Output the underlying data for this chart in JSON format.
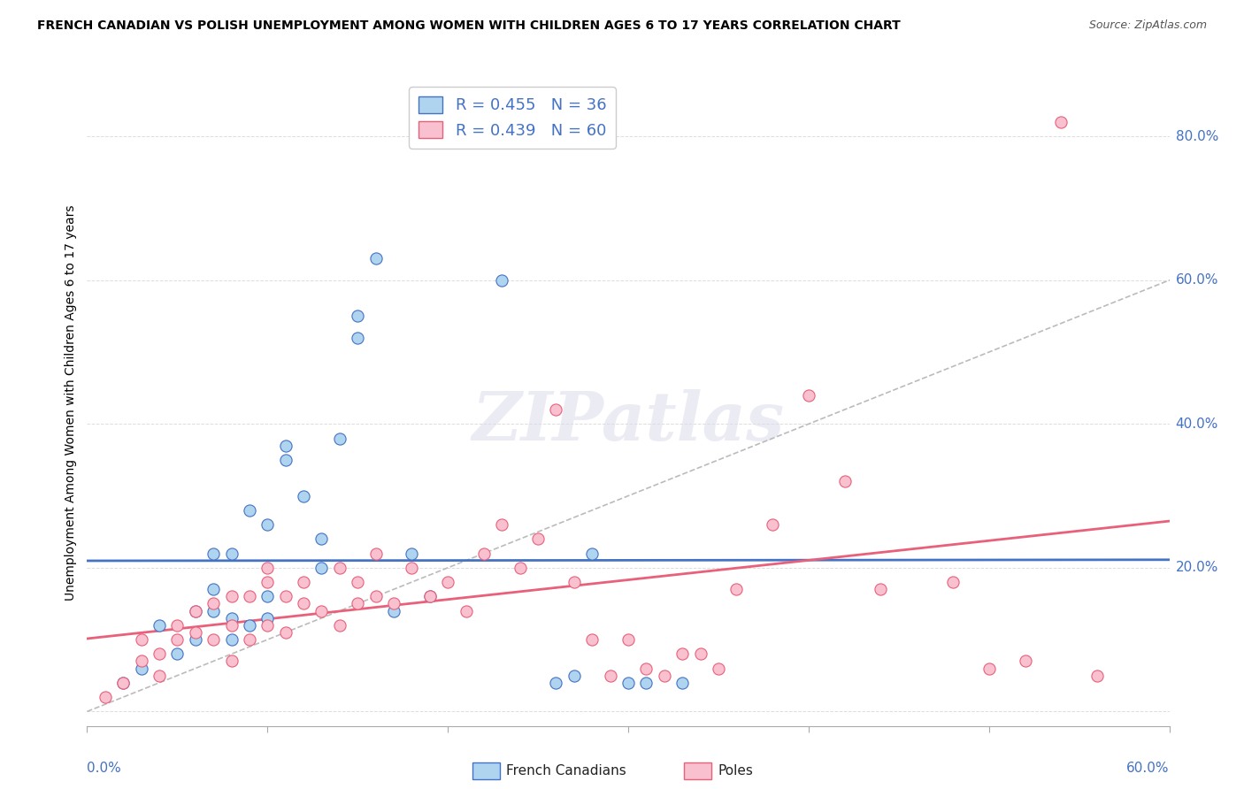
{
  "title": "FRENCH CANADIAN VS POLISH UNEMPLOYMENT AMONG WOMEN WITH CHILDREN AGES 6 TO 17 YEARS CORRELATION CHART",
  "source": "Source: ZipAtlas.com",
  "ylabel": "Unemployment Among Women with Children Ages 6 to 17 years",
  "right_yticks": [
    0.0,
    0.2,
    0.4,
    0.6,
    0.8
  ],
  "right_yticklabels": [
    "",
    "20.0%",
    "40.0%",
    "60.0%",
    "80.0%"
  ],
  "xlim": [
    0.0,
    0.6
  ],
  "ylim": [
    -0.02,
    0.88
  ],
  "legend_blue_label": "French Canadians",
  "legend_pink_label": "Poles",
  "r_blue": 0.455,
  "n_blue": 36,
  "r_pink": 0.439,
  "n_pink": 60,
  "blue_fill_color": "#AED4F0",
  "pink_fill_color": "#F9C0CF",
  "blue_line_color": "#4472C4",
  "pink_line_color": "#E8607A",
  "diag_color": "#BBBBBB",
  "grid_color": "#DDDDDD",
  "watermark_text": "ZIPatlas",
  "blue_scatter_x": [
    0.02,
    0.03,
    0.04,
    0.05,
    0.06,
    0.06,
    0.07,
    0.07,
    0.07,
    0.08,
    0.08,
    0.08,
    0.09,
    0.09,
    0.1,
    0.1,
    0.1,
    0.11,
    0.11,
    0.12,
    0.13,
    0.13,
    0.14,
    0.15,
    0.15,
    0.16,
    0.17,
    0.18,
    0.19,
    0.23,
    0.26,
    0.27,
    0.28,
    0.3,
    0.31,
    0.33
  ],
  "blue_scatter_y": [
    0.04,
    0.06,
    0.12,
    0.08,
    0.1,
    0.14,
    0.14,
    0.17,
    0.22,
    0.1,
    0.13,
    0.22,
    0.12,
    0.28,
    0.13,
    0.16,
    0.26,
    0.35,
    0.37,
    0.3,
    0.2,
    0.24,
    0.38,
    0.52,
    0.55,
    0.63,
    0.14,
    0.22,
    0.16,
    0.6,
    0.04,
    0.05,
    0.22,
    0.04,
    0.04,
    0.04
  ],
  "pink_scatter_x": [
    0.01,
    0.02,
    0.03,
    0.03,
    0.04,
    0.04,
    0.05,
    0.05,
    0.06,
    0.06,
    0.07,
    0.07,
    0.08,
    0.08,
    0.08,
    0.09,
    0.09,
    0.1,
    0.1,
    0.1,
    0.11,
    0.11,
    0.12,
    0.12,
    0.13,
    0.14,
    0.14,
    0.15,
    0.15,
    0.16,
    0.16,
    0.17,
    0.18,
    0.19,
    0.2,
    0.21,
    0.22,
    0.23,
    0.24,
    0.25,
    0.26,
    0.27,
    0.28,
    0.29,
    0.3,
    0.31,
    0.32,
    0.33,
    0.34,
    0.35,
    0.36,
    0.38,
    0.4,
    0.42,
    0.44,
    0.48,
    0.5,
    0.52,
    0.54,
    0.56
  ],
  "pink_scatter_y": [
    0.02,
    0.04,
    0.07,
    0.1,
    0.05,
    0.08,
    0.1,
    0.12,
    0.11,
    0.14,
    0.1,
    0.15,
    0.07,
    0.12,
    0.16,
    0.1,
    0.16,
    0.12,
    0.18,
    0.2,
    0.11,
    0.16,
    0.15,
    0.18,
    0.14,
    0.12,
    0.2,
    0.15,
    0.18,
    0.16,
    0.22,
    0.15,
    0.2,
    0.16,
    0.18,
    0.14,
    0.22,
    0.26,
    0.2,
    0.24,
    0.42,
    0.18,
    0.1,
    0.05,
    0.1,
    0.06,
    0.05,
    0.08,
    0.08,
    0.06,
    0.17,
    0.26,
    0.44,
    0.32,
    0.17,
    0.18,
    0.06,
    0.07,
    0.82,
    0.05
  ]
}
